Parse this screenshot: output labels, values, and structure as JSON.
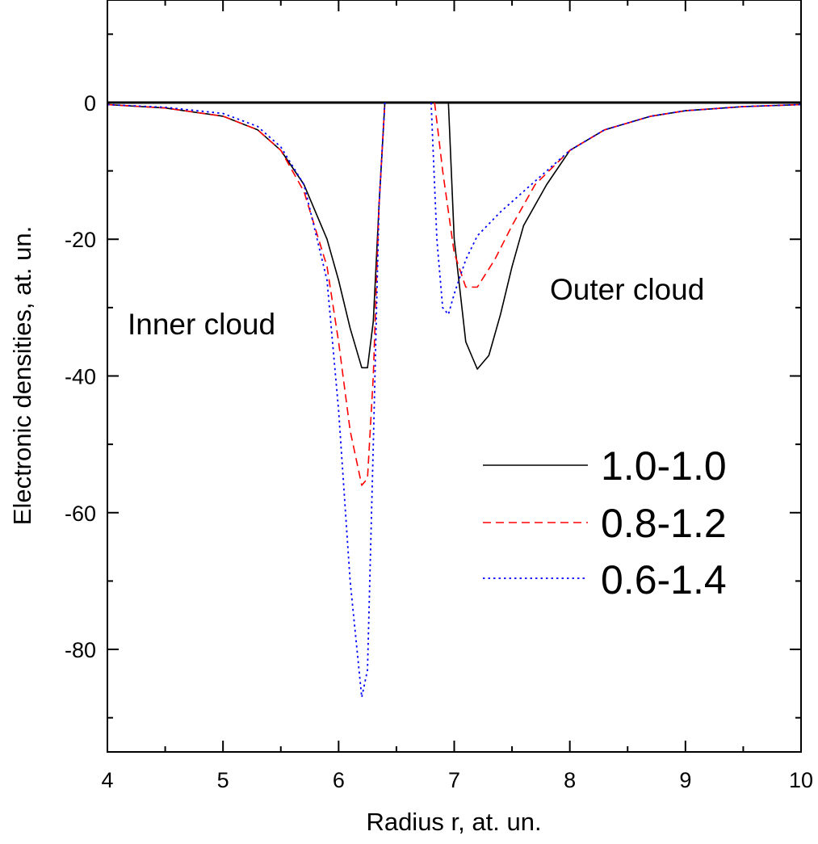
{
  "chart_data": {
    "type": "line",
    "title": "",
    "xlabel": "Radius r, at. un.",
    "ylabel": "Electronic densities, at. un.",
    "xlim": [
      4,
      10
    ],
    "ylim": [
      -95,
      15
    ],
    "x_ticks": [
      4,
      5,
      6,
      7,
      8,
      9,
      10
    ],
    "y_ticks": [
      0,
      -20,
      -40,
      -60,
      -80
    ],
    "x_tick_labels": [
      "4",
      "5",
      "6",
      "7",
      "8",
      "9",
      "10"
    ],
    "y_tick_labels": [
      "0",
      "-20",
      "-40",
      "-60",
      "-80"
    ],
    "grid": false,
    "legend_position": "right",
    "annotations": [
      {
        "text": "Inner cloud",
        "x": 4.2,
        "y": -33
      },
      {
        "text": "Outer cloud",
        "x": 7.8,
        "y": -27
      }
    ],
    "zero_line": {
      "y": 0,
      "color": "#000000"
    },
    "series": [
      {
        "name": "1.0-1.0",
        "color": "#000000",
        "dash": "solid",
        "segments": [
          [
            [
              4.0,
              -0.3
            ],
            [
              4.5,
              -0.8
            ],
            [
              5.0,
              -2.0
            ],
            [
              5.3,
              -4.0
            ],
            [
              5.5,
              -7.0
            ],
            [
              5.7,
              -12.0
            ],
            [
              5.9,
              -20.0
            ],
            [
              6.0,
              -26.0
            ],
            [
              6.1,
              -33.0
            ],
            [
              6.2,
              -38.8
            ],
            [
              6.25,
              -38.8
            ],
            [
              6.3,
              -32.0
            ],
            [
              6.35,
              -15.0
            ],
            [
              6.4,
              0.0
            ]
          ],
          [
            [
              6.95,
              0.0
            ],
            [
              7.0,
              -20.0
            ],
            [
              7.1,
              -35.0
            ],
            [
              7.2,
              -39.0
            ],
            [
              7.3,
              -37.0
            ],
            [
              7.4,
              -31.0
            ],
            [
              7.5,
              -24.0
            ],
            [
              7.6,
              -18.0
            ],
            [
              7.8,
              -12.0
            ],
            [
              8.0,
              -7.0
            ],
            [
              8.3,
              -4.0
            ],
            [
              8.7,
              -2.0
            ],
            [
              9.0,
              -1.2
            ],
            [
              9.5,
              -0.6
            ],
            [
              10.0,
              -0.3
            ]
          ]
        ]
      },
      {
        "name": "0.8-1.2",
        "color": "#ff0000",
        "dash": "dashed",
        "segments": [
          [
            [
              4.0,
              -0.3
            ],
            [
              4.5,
              -0.8
            ],
            [
              5.0,
              -2.0
            ],
            [
              5.3,
              -4.0
            ],
            [
              5.5,
              -7.0
            ],
            [
              5.7,
              -13.0
            ],
            [
              5.9,
              -24.0
            ],
            [
              6.0,
              -35.0
            ],
            [
              6.1,
              -48.0
            ],
            [
              6.2,
              -56.0
            ],
            [
              6.25,
              -55.0
            ],
            [
              6.3,
              -40.0
            ],
            [
              6.35,
              -15.0
            ],
            [
              6.4,
              0.0
            ]
          ],
          [
            [
              6.83,
              0.0
            ],
            [
              6.9,
              -10.0
            ],
            [
              7.0,
              -22.0
            ],
            [
              7.1,
              -27.0
            ],
            [
              7.2,
              -27.0
            ],
            [
              7.35,
              -23.0
            ],
            [
              7.5,
              -18.0
            ],
            [
              7.7,
              -12.0
            ],
            [
              8.0,
              -7.0
            ],
            [
              8.3,
              -4.0
            ],
            [
              8.7,
              -2.0
            ],
            [
              9.0,
              -1.2
            ],
            [
              9.5,
              -0.6
            ],
            [
              10.0,
              -0.3
            ]
          ]
        ]
      },
      {
        "name": "0.6-1.4",
        "color": "#0000ff",
        "dash": "dotted",
        "segments": [
          [
            [
              4.0,
              -0.3
            ],
            [
              4.5,
              -0.7
            ],
            [
              5.0,
              -1.6
            ],
            [
              5.3,
              -3.5
            ],
            [
              5.5,
              -6.5
            ],
            [
              5.7,
              -12.0
            ],
            [
              5.9,
              -26.0
            ],
            [
              6.0,
              -45.0
            ],
            [
              6.1,
              -70.0
            ],
            [
              6.2,
              -87.0
            ],
            [
              6.25,
              -83.0
            ],
            [
              6.3,
              -50.0
            ],
            [
              6.35,
              -15.0
            ],
            [
              6.4,
              0.0
            ]
          ],
          [
            [
              6.8,
              0.0
            ],
            [
              6.85,
              -20.0
            ],
            [
              6.9,
              -30.0
            ],
            [
              6.95,
              -31.0
            ],
            [
              7.0,
              -28.0
            ],
            [
              7.1,
              -23.0
            ],
            [
              7.2,
              -19.5
            ],
            [
              7.4,
              -16.0
            ],
            [
              7.6,
              -13.0
            ],
            [
              7.8,
              -10.0
            ],
            [
              8.0,
              -7.0
            ],
            [
              8.3,
              -4.0
            ],
            [
              8.7,
              -2.0
            ],
            [
              9.0,
              -1.2
            ],
            [
              9.5,
              -0.6
            ],
            [
              10.0,
              -0.3
            ]
          ]
        ]
      }
    ]
  }
}
